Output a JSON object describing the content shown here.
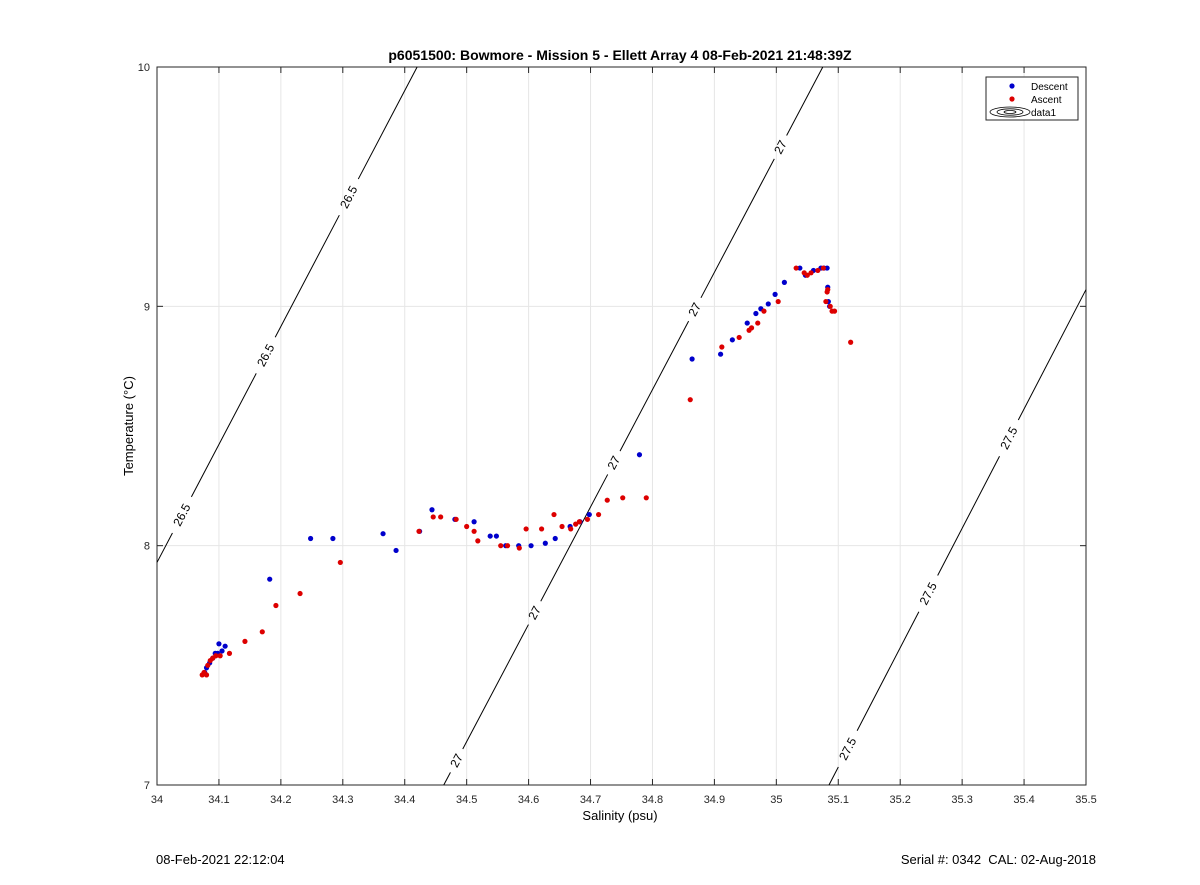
{
  "chart_data": {
    "type": "scatter",
    "title": "p6051500: Bowmore - Mission 5 - Ellett Array 4 08-Feb-2021 21:48:39Z",
    "xlabel": "Salinity (psu)",
    "ylabel": "Temperature (°C)",
    "xlim": [
      34,
      35.5
    ],
    "ylim": [
      7,
      10
    ],
    "xticks": [
      34,
      34.1,
      34.2,
      34.3,
      34.4,
      34.5,
      34.6,
      34.7,
      34.8,
      34.9,
      35,
      35.1,
      35.2,
      35.3,
      35.4,
      35.5
    ],
    "xtick_labels": [
      "34",
      "34.1",
      "34.2",
      "34.3",
      "34.4",
      "34.5",
      "34.6",
      "34.7",
      "34.8",
      "34.9",
      "35",
      "35.1",
      "35.2",
      "35.3",
      "35.4",
      "35.5"
    ],
    "yticks": [
      7,
      8,
      9,
      10
    ],
    "ytick_labels": [
      "7",
      "8",
      "9",
      "10"
    ],
    "grid": true,
    "legend_position": "top-right",
    "series": [
      {
        "name": "Descent",
        "marker": "dot",
        "color": "#0000cc",
        "points": [
          [
            34.077,
            7.47
          ],
          [
            34.08,
            7.49
          ],
          [
            34.085,
            7.51
          ],
          [
            34.09,
            7.53
          ],
          [
            34.094,
            7.55
          ],
          [
            34.098,
            7.55
          ],
          [
            34.1,
            7.59
          ],
          [
            34.105,
            7.56
          ],
          [
            34.11,
            7.58
          ],
          [
            34.182,
            7.86
          ],
          [
            34.248,
            8.03
          ],
          [
            34.284,
            8.03
          ],
          [
            34.365,
            8.05
          ],
          [
            34.386,
            7.98
          ],
          [
            34.424,
            8.06
          ],
          [
            34.444,
            8.15
          ],
          [
            34.481,
            8.11
          ],
          [
            34.512,
            8.1
          ],
          [
            34.538,
            8.04
          ],
          [
            34.548,
            8.04
          ],
          [
            34.563,
            8.0
          ],
          [
            34.584,
            8.0
          ],
          [
            34.604,
            8.0
          ],
          [
            34.627,
            8.01
          ],
          [
            34.643,
            8.03
          ],
          [
            34.667,
            8.08
          ],
          [
            34.683,
            8.1
          ],
          [
            34.698,
            8.13
          ],
          [
            34.779,
            8.38
          ],
          [
            34.864,
            8.78
          ],
          [
            34.91,
            8.8
          ],
          [
            34.929,
            8.86
          ],
          [
            34.953,
            8.93
          ],
          [
            34.967,
            8.97
          ],
          [
            34.975,
            8.99
          ],
          [
            34.987,
            9.01
          ],
          [
            34.998,
            9.05
          ],
          [
            35.013,
            9.1
          ],
          [
            35.038,
            9.16
          ],
          [
            35.047,
            9.13
          ],
          [
            35.06,
            9.15
          ],
          [
            35.072,
            9.16
          ],
          [
            35.077,
            9.16
          ],
          [
            35.082,
            9.16
          ],
          [
            35.083,
            9.08
          ],
          [
            35.084,
            9.02
          ],
          [
            35.086,
            9.0
          ]
        ]
      },
      {
        "name": "Ascent",
        "marker": "dot",
        "color": "#dd0000",
        "points": [
          [
            34.073,
            7.46
          ],
          [
            34.076,
            7.47
          ],
          [
            34.08,
            7.46
          ],
          [
            34.082,
            7.5
          ],
          [
            34.086,
            7.52
          ],
          [
            34.09,
            7.53
          ],
          [
            34.095,
            7.54
          ],
          [
            34.102,
            7.54
          ],
          [
            34.117,
            7.55
          ],
          [
            34.142,
            7.6
          ],
          [
            34.17,
            7.64
          ],
          [
            34.192,
            7.75
          ],
          [
            34.231,
            7.8
          ],
          [
            34.296,
            7.93
          ],
          [
            34.423,
            8.06
          ],
          [
            34.446,
            8.12
          ],
          [
            34.458,
            8.12
          ],
          [
            34.483,
            8.11
          ],
          [
            34.5,
            8.08
          ],
          [
            34.512,
            8.06
          ],
          [
            34.518,
            8.02
          ],
          [
            34.555,
            8.0
          ],
          [
            34.566,
            8.0
          ],
          [
            34.585,
            7.99
          ],
          [
            34.596,
            8.07
          ],
          [
            34.621,
            8.07
          ],
          [
            34.641,
            8.13
          ],
          [
            34.654,
            8.08
          ],
          [
            34.668,
            8.07
          ],
          [
            34.676,
            8.09
          ],
          [
            34.682,
            8.1
          ],
          [
            34.695,
            8.11
          ],
          [
            34.713,
            8.13
          ],
          [
            34.727,
            8.19
          ],
          [
            34.752,
            8.2
          ],
          [
            34.79,
            8.2
          ],
          [
            34.861,
            8.61
          ],
          [
            34.912,
            8.83
          ],
          [
            34.94,
            8.87
          ],
          [
            34.956,
            8.9
          ],
          [
            34.96,
            8.91
          ],
          [
            34.97,
            8.93
          ],
          [
            34.98,
            8.98
          ],
          [
            35.003,
            9.02
          ],
          [
            35.032,
            9.16
          ],
          [
            35.045,
            9.14
          ],
          [
            35.05,
            9.13
          ],
          [
            35.056,
            9.14
          ],
          [
            35.067,
            9.15
          ],
          [
            35.076,
            9.16
          ],
          [
            35.08,
            9.02
          ],
          [
            35.082,
            9.06
          ],
          [
            35.083,
            9.07
          ],
          [
            35.087,
            9.0
          ],
          [
            35.09,
            8.98
          ],
          [
            35.094,
            8.98
          ],
          [
            35.12,
            8.85
          ]
        ]
      }
    ],
    "contours": [
      {
        "name": "data1",
        "level_label": "26.5",
        "color": "#000000",
        "line": [
          [
            34.0,
            7.93
          ],
          [
            34.42,
            10.0
          ]
        ],
        "labels": [
          {
            "text": "26.5",
            "at": [
              34.039,
              8.13
            ]
          },
          {
            "text": "26.5",
            "at": [
              34.172,
              8.8
            ]
          },
          {
            "text": "26.5",
            "at": [
              34.307,
              9.46
            ]
          }
        ]
      },
      {
        "name": "data1",
        "level_label": "27",
        "color": "#000000",
        "line": [
          [
            34.463,
            7.0
          ],
          [
            35.075,
            10.0
          ]
        ],
        "labels": [
          {
            "text": "27",
            "at": [
              34.485,
              7.1
            ]
          },
          {
            "text": "27",
            "at": [
              34.609,
              7.72
            ]
          },
          {
            "text": "27",
            "at": [
              34.735,
              8.35
            ]
          },
          {
            "text": "27",
            "at": [
              34.866,
              8.99
            ]
          },
          {
            "text": "27",
            "at": [
              35.003,
              9.67
            ]
          }
        ]
      },
      {
        "name": "data1",
        "level_label": "27.5",
        "color": "#000000",
        "line": [
          [
            35.085,
            7.0
          ],
          [
            35.5,
            9.07
          ]
        ],
        "labels": [
          {
            "text": "27.5",
            "at": [
              35.116,
              7.15
            ]
          },
          {
            "text": "27.5",
            "at": [
              35.245,
              7.8
            ]
          },
          {
            "text": "27.5",
            "at": [
              35.375,
              8.45
            ]
          }
        ]
      }
    ],
    "legend": [
      {
        "label": "Descent",
        "kind": "dot",
        "color": "#0000cc"
      },
      {
        "label": "Ascent",
        "kind": "dot",
        "color": "#dd0000"
      },
      {
        "label": "data1",
        "kind": "contour",
        "color": "#000000"
      }
    ]
  },
  "footer": {
    "left": "08-Feb-2021 22:12:04",
    "right": "Serial #: 0342  CAL: 02-Aug-2018"
  }
}
